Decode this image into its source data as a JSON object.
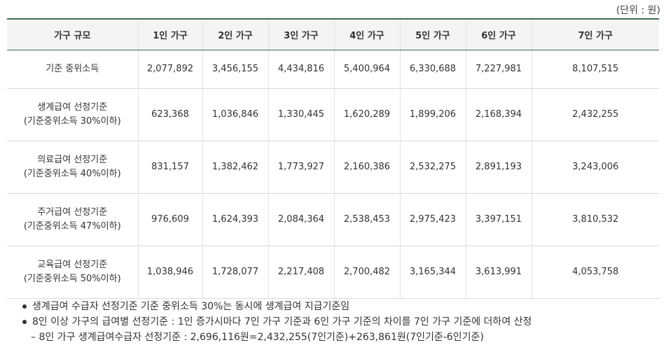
{
  "unit_label": "(단위 : 원)",
  "table": {
    "headers": [
      "가구 규모",
      "1인 가구",
      "2인 가구",
      "3인 가구",
      "4인 가구",
      "5인 가구",
      "6인 가구",
      "7인 가구"
    ],
    "rows": [
      {
        "label": [
          "기준 중위소득"
        ],
        "values": [
          "2,077,892",
          "3,456,155",
          "4,434,816",
          "5,400,964",
          "6,330,688",
          "7,227,981",
          "8,107,515"
        ]
      },
      {
        "label": [
          "생계급여 선정기준",
          "(기준중위소득 30%이하)"
        ],
        "values": [
          "623,368",
          "1,036,846",
          "1,330,445",
          "1,620,289",
          "1,899,206",
          "2,168,394",
          "2,432,255"
        ]
      },
      {
        "label": [
          "의료급여 선정기준",
          "(기준중위소득 40%이하)"
        ],
        "values": [
          "831,157",
          "1,382,462",
          "1,773,927",
          "2,160,386",
          "2,532,275",
          "2,891,193",
          "3,243,006"
        ]
      },
      {
        "label": [
          "주거급여 선정기준",
          "(기준중위소득 47%이하)"
        ],
        "values": [
          "976,609",
          "1,624,393",
          "2,084,364",
          "2,538,453",
          "2,975,423",
          "3,397,151",
          "3,810,532"
        ]
      },
      {
        "label": [
          "교육급여 선정기준",
          "(기준중위소득 50%이하)"
        ],
        "values": [
          "1,038,946",
          "1,728,077",
          "2,217,408",
          "2,700,482",
          "3,165,344",
          "3,613,991",
          "4,053,758"
        ]
      }
    ]
  },
  "notes": [
    "생계급여 수급자 선정기준 기준 중위소득 30%는 동시에 생계급여 지급기준임",
    "8인 이상 가구의 급여별 선정기준 : 1인 증가시마다 7인 가구 기준과 6인 가구 기준의 차이를 7인 가구 기준에 더하여 산정"
  ],
  "subnote": "– 8인 가구 생계급여수급자 선정기준 : 2,696,116원=2,432,255(7인기준)+263,861원(7인기준-6인기준)"
}
